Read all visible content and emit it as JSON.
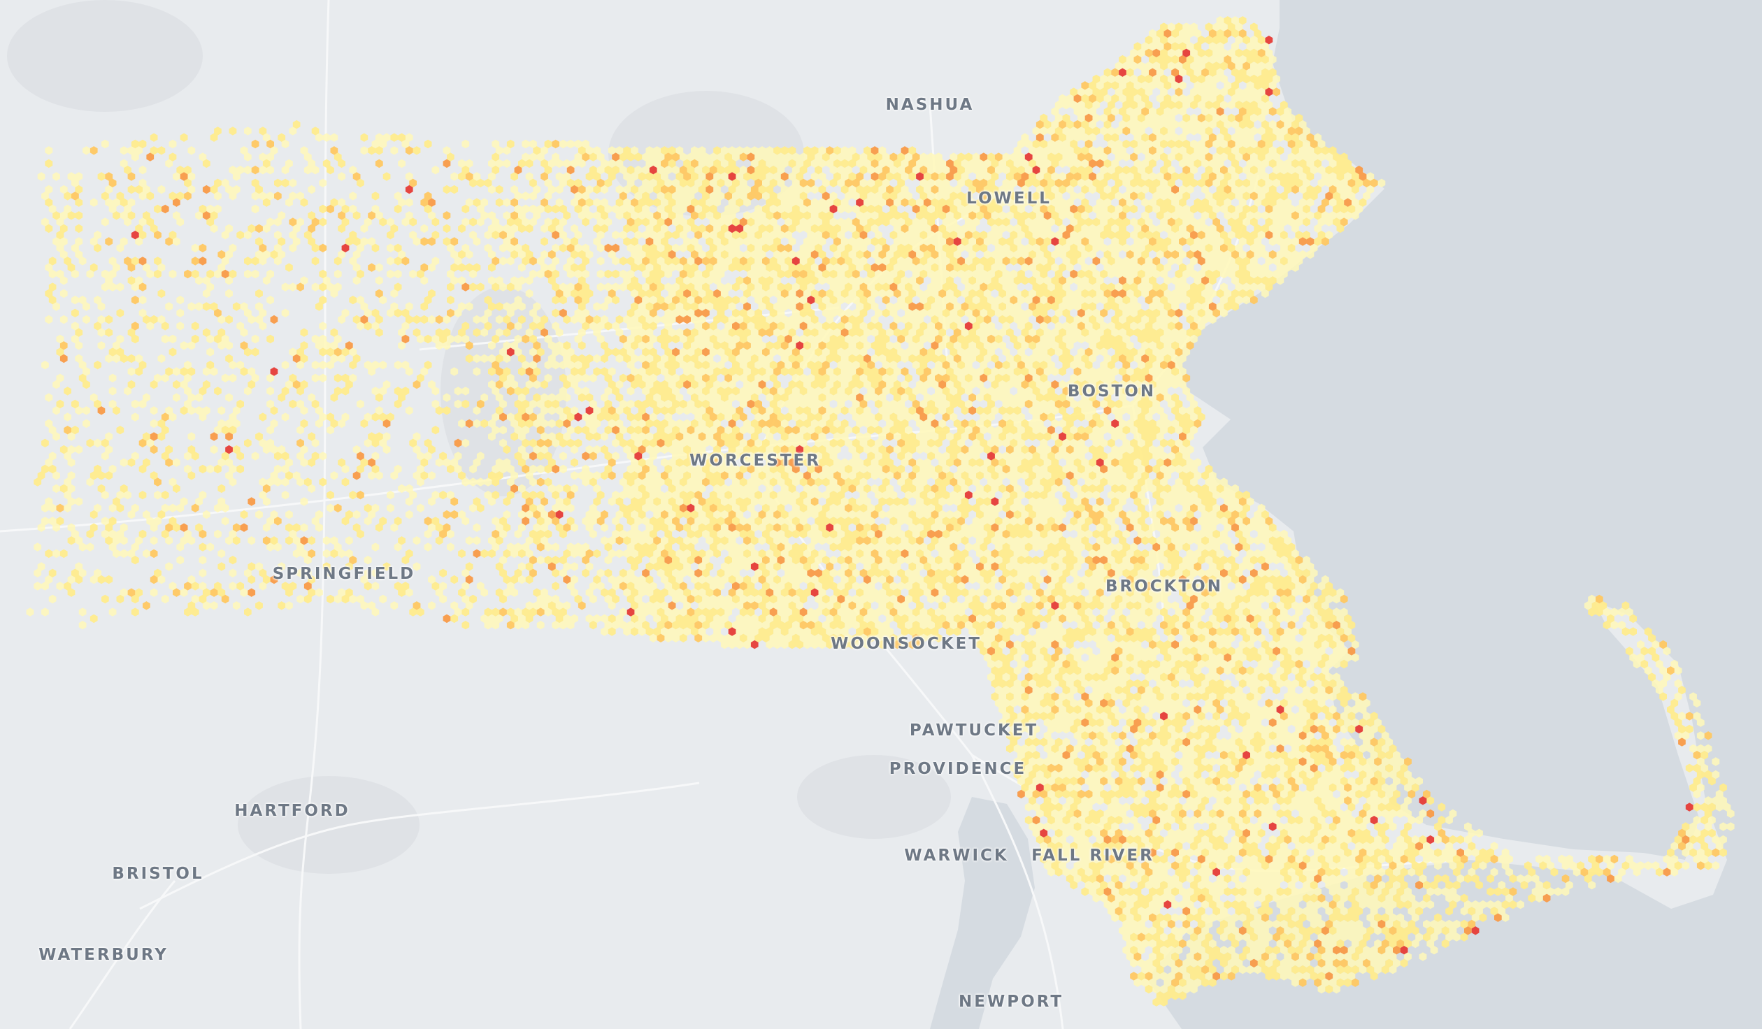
{
  "map": {
    "basemap_colors": {
      "land": "#e8ebee",
      "water": "#d5dbe1",
      "roads": "#f7f8f9",
      "urban": "#dfe2e6"
    },
    "hex_colors": [
      "#fff8b8",
      "#ffec8c",
      "#ffc861",
      "#f99b47",
      "#e63c36"
    ],
    "cities": [
      {
        "id": "nashua",
        "name": "NASHUA"
      },
      {
        "id": "lowell",
        "name": "LOWELL"
      },
      {
        "id": "boston",
        "name": "BOSTON"
      },
      {
        "id": "worcester",
        "name": "WORCESTER"
      },
      {
        "id": "springfield",
        "name": "SPRINGFIELD"
      },
      {
        "id": "brockton",
        "name": "BROCKTON"
      },
      {
        "id": "woonsocket",
        "name": "WOONSOCKET"
      },
      {
        "id": "pawtucket",
        "name": "PAWTUCKET"
      },
      {
        "id": "providence",
        "name": "PROVIDENCE"
      },
      {
        "id": "hartford",
        "name": "HARTFORD"
      },
      {
        "id": "bristol",
        "name": "BRISTOL"
      },
      {
        "id": "warwick",
        "name": "WARWICK"
      },
      {
        "id": "fall-river",
        "name": "FALL RIVER"
      },
      {
        "id": "waterbury",
        "name": "WATERBURY"
      },
      {
        "id": "newport",
        "name": "NEWPORT"
      }
    ]
  }
}
